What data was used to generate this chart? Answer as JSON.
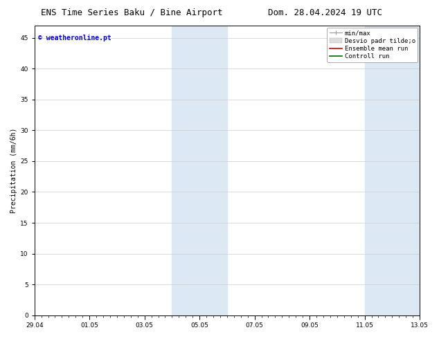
{
  "title_left": "ENS Time Series Baku / Bine Airport",
  "title_right": "Dom. 28.04.2024 19 UTC",
  "ylabel": "Precipitation (mm/6h)",
  "xlabel_ticks": [
    "29.04",
    "01.05",
    "03.05",
    "05.05",
    "07.05",
    "09.05",
    "11.05",
    "13.05"
  ],
  "xlim_start": 0,
  "xlim_end": 336,
  "ylim": [
    0,
    47
  ],
  "yticks": [
    0,
    5,
    10,
    15,
    20,
    25,
    30,
    35,
    40,
    45
  ],
  "shaded_regions": [
    {
      "x_start": 120,
      "x_end": 144
    },
    {
      "x_start": 144,
      "x_end": 168
    },
    {
      "x_start": 288,
      "x_end": 312
    },
    {
      "x_start": 312,
      "x_end": 336
    }
  ],
  "shade_color": "#dce9f5",
  "watermark_text": "© weatheronline.pt",
  "watermark_color": "#0000cc",
  "legend_labels": [
    "min/max",
    "Desvio padr tilde;o",
    "Ensemble mean run",
    "Controll run"
  ],
  "bg_color": "#ffffff",
  "x_tick_positions": [
    0,
    48,
    96,
    144,
    192,
    240,
    288,
    336
  ],
  "title_fontsize": 9,
  "axis_label_fontsize": 7,
  "tick_fontsize": 6.5,
  "legend_fontsize": 6.5,
  "watermark_fontsize": 7
}
